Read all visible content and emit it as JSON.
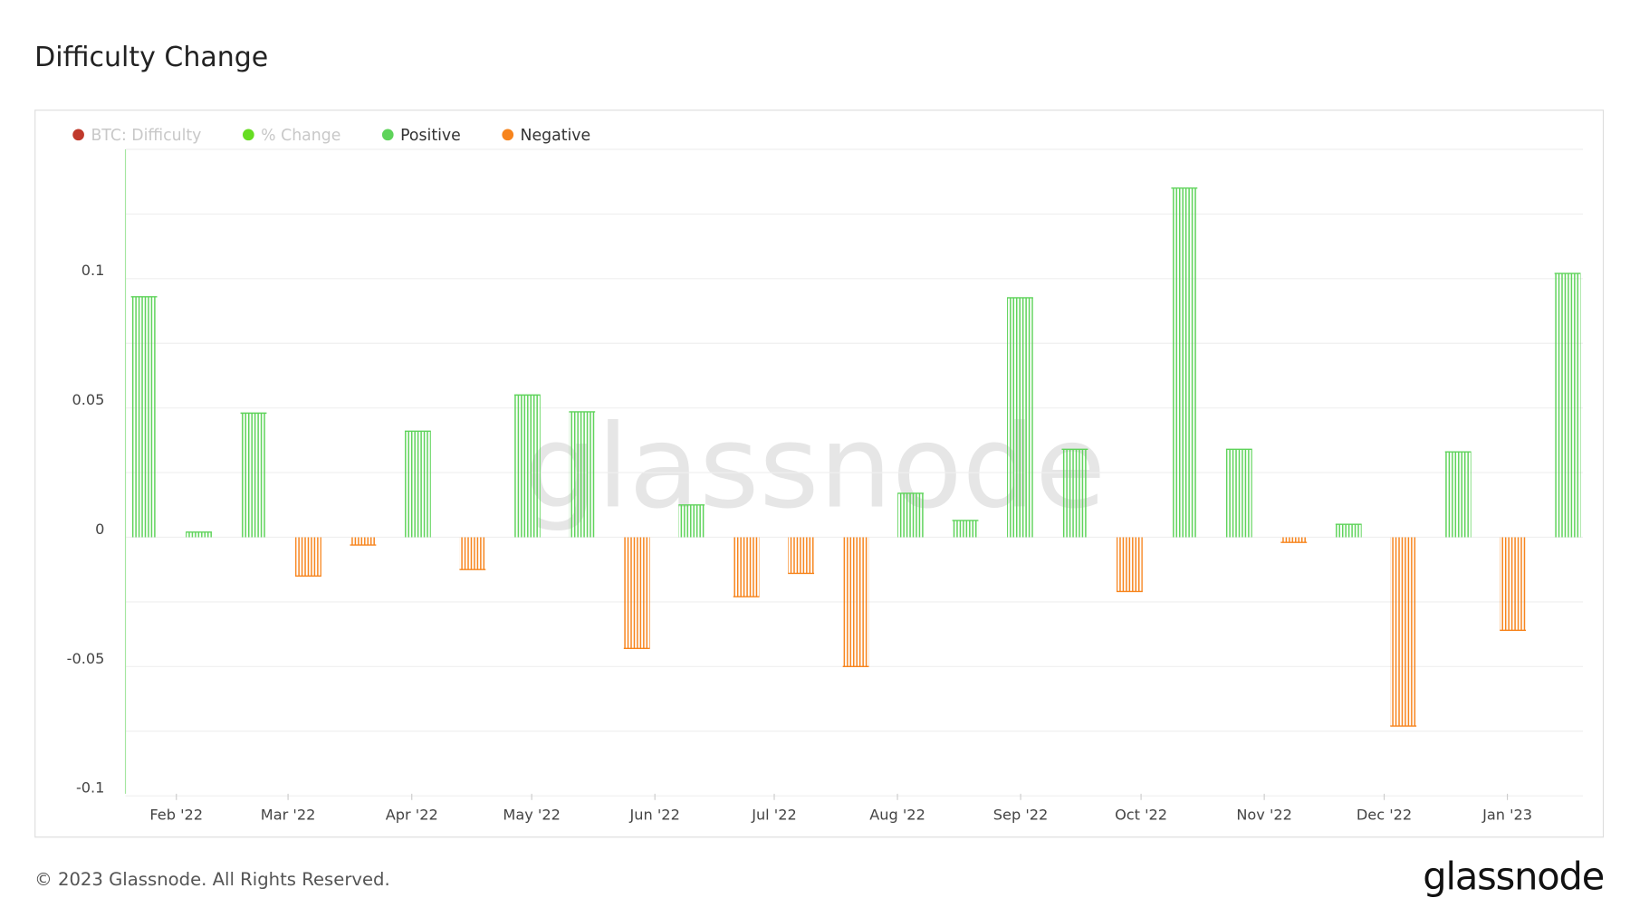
{
  "header": {
    "title": "Difficulty Change"
  },
  "footer": {
    "copyright": "© 2023 Glassnode. All Rights Reserved.",
    "logo": "glassnode"
  },
  "chart_data": {
    "type": "bar",
    "watermark": "glassnode",
    "legend": [
      {
        "name": "BTC: Difficulty",
        "color": "#c0392b",
        "active": false
      },
      {
        "name": "% Change",
        "color": "#66dd22",
        "active": false
      },
      {
        "name": "Positive",
        "color": "#5ed35a",
        "active": true
      },
      {
        "name": "Negative",
        "color": "#f7841c",
        "active": true
      }
    ],
    "positive_color": "#5ed35a",
    "negative_color": "#f7841c",
    "categories": [
      null,
      null,
      null,
      null,
      null,
      null,
      null,
      null,
      null,
      null,
      null,
      null,
      null,
      null,
      null,
      null,
      null,
      null,
      null,
      null,
      null,
      null,
      null,
      null,
      null,
      null,
      null
    ],
    "values": [
      0.093,
      0.002,
      0.048,
      -0.015,
      -0.003,
      0.041,
      -0.0125,
      0.055,
      0.0485,
      -0.043,
      0.0125,
      -0.023,
      -0.014,
      -0.05,
      0.017,
      0.0065,
      0.0926,
      0.034,
      -0.021,
      0.135,
      0.034,
      -0.002,
      0.005,
      -0.073,
      0.033,
      -0.036,
      0.102
    ],
    "xlim": [
      -0.34,
      26.28
    ],
    "xticks": [
      {
        "value": 0.59,
        "label": "Feb '22"
      },
      {
        "value": 2.63,
        "label": "Mar '22"
      },
      {
        "value": 4.89,
        "label": "Apr '22"
      },
      {
        "value": 7.08,
        "label": "May '22"
      },
      {
        "value": 9.33,
        "label": "Jun '22"
      },
      {
        "value": 11.51,
        "label": "Jul '22"
      },
      {
        "value": 13.76,
        "label": "Aug '22"
      },
      {
        "value": 16.01,
        "label": "Sep '22"
      },
      {
        "value": 18.21,
        "label": "Oct '22"
      },
      {
        "value": 20.46,
        "label": "Nov '22"
      },
      {
        "value": 22.65,
        "label": "Dec '22"
      },
      {
        "value": 24.9,
        "label": "Jan '23"
      }
    ],
    "ylim": [
      -0.1,
      0.15
    ],
    "yticks": [
      -0.1,
      -0.05,
      0,
      0.05,
      0.1
    ],
    "yminorticks": [
      -0.075,
      -0.025,
      0.025,
      0.075,
      0.125,
      0.15
    ],
    "grid": true
  }
}
